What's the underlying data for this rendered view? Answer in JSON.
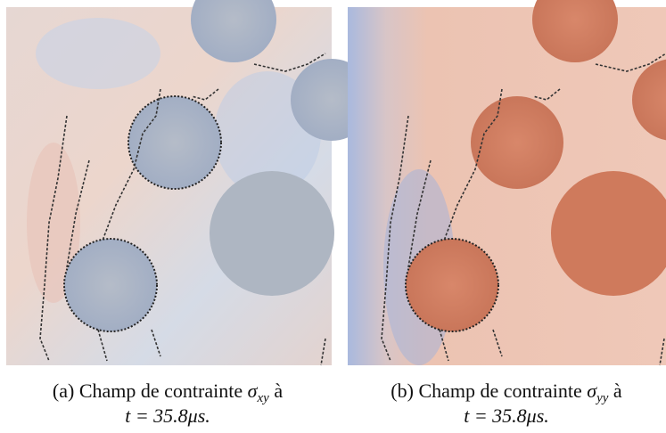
{
  "figures": [
    {
      "label": "(a)",
      "caption": "Champ de contrainte",
      "symbol": "σ",
      "subscript": "xy",
      "after": "à",
      "line2": "t = 35.8μs."
    },
    {
      "label": "(b)",
      "caption": "Champ de contrainte",
      "symbol": "σ",
      "subscript": "yy",
      "after": "à",
      "line2": "t = 35.8μs."
    }
  ]
}
